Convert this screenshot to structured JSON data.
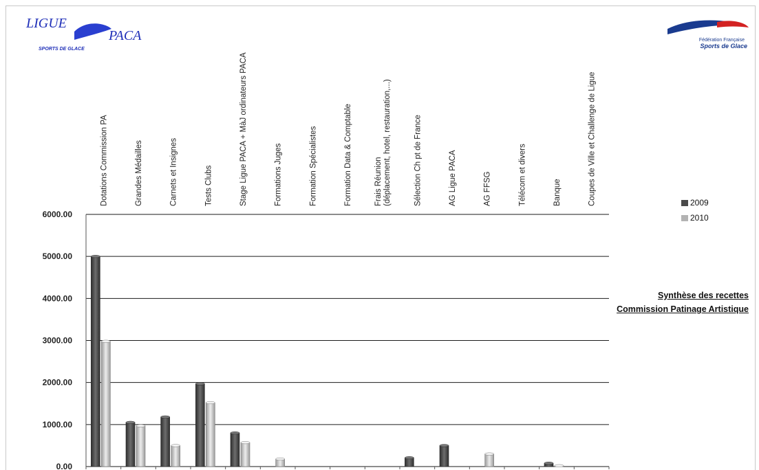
{
  "logos": {
    "ligue_text_top": "LIGUE",
    "ligue_text_paca": "PACA",
    "ligue_text_bottom": "SPORTS DE GLACE",
    "ffsg_line1": "Fédération Française",
    "ffsg_line2": "Sports de Glace"
  },
  "title": {
    "line1": "Synthèse des recettes",
    "line2": "Commission Patinage Artistique"
  },
  "colors": {
    "series_2009": "#4a4a4a",
    "series_2010": "#b3b3b3",
    "gridline": "#1a1a1a"
  },
  "chart_data": {
    "type": "bar",
    "categories": [
      "Dotations Commission PA",
      "Grandes Médailles",
      "Carnets et Insignes",
      "Tests Clubs",
      "Stage Ligue PACA + MàJ ordinateurs PACA",
      "Formations Juges",
      "Formation Spécialistes",
      "Formation Data & Comptable",
      "Frais Réunion (déplacement, hotel, restauration,...)",
      "Sélection Ch pt de France",
      "AG Ligue PACA",
      "AG FFSG",
      "Télécom et divers",
      "Banque",
      "Coupes de Ville et Challenge de Ligue"
    ],
    "category_lines": [
      [
        "Dotations Commission PA"
      ],
      [
        "Grandes Médailles"
      ],
      [
        "Carnets et Insignes"
      ],
      [
        "Tests Clubs"
      ],
      [
        "Stage Ligue PACA + MàJ ordinateurs PACA"
      ],
      [
        "Formations Juges"
      ],
      [
        "Formation Spécialistes"
      ],
      [
        "Formation Data & Comptable"
      ],
      [
        "Frais Réunion",
        "(déplacement, hotel, restauration,...)"
      ],
      [
        "Sélection Ch pt de France"
      ],
      [
        "AG Ligue PACA"
      ],
      [
        "AG FFSG"
      ],
      [
        "Télécom et divers"
      ],
      [
        "Banque"
      ],
      [
        "Coupes de Ville et Challenge de Ligue"
      ]
    ],
    "series": [
      {
        "name": "2009",
        "values": [
          5000,
          1050,
          1180,
          1970,
          800,
          0,
          0,
          0,
          0,
          210,
          500,
          0,
          0,
          80,
          0
        ]
      },
      {
        "name": "2010",
        "values": [
          2980,
          970,
          500,
          1520,
          570,
          180,
          0,
          0,
          0,
          0,
          0,
          300,
          0,
          20,
          0
        ]
      }
    ],
    "yticks": [
      "0.00",
      "1000.00",
      "2000.00",
      "3000.00",
      "4000.00",
      "5000.00",
      "6000.00"
    ],
    "ylim": [
      0,
      6000
    ],
    "grid": true,
    "legend_position": "right"
  }
}
